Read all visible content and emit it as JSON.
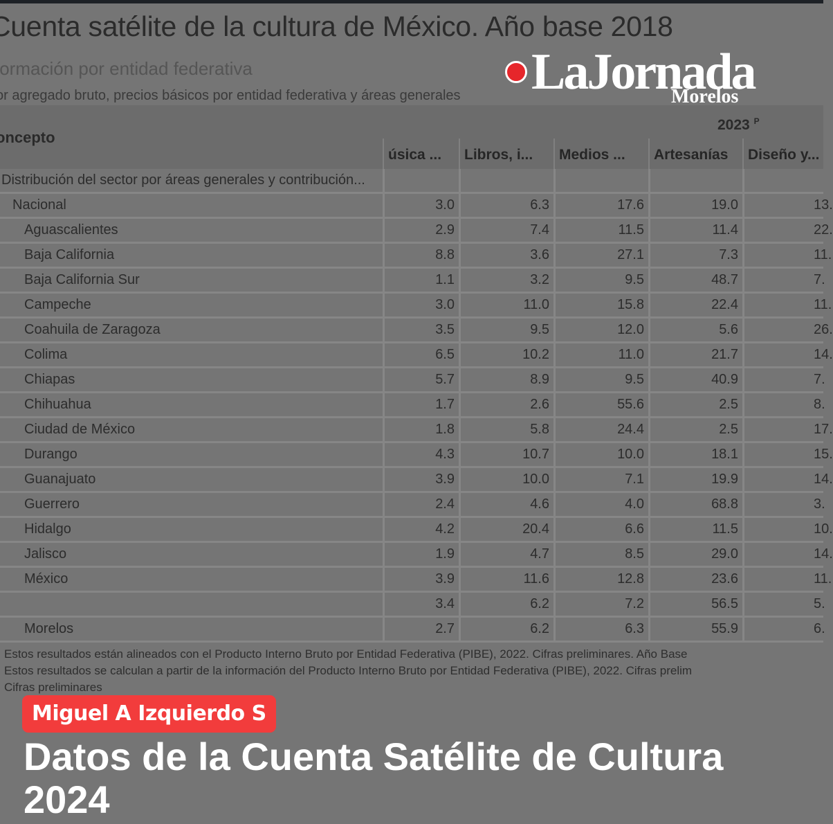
{
  "source_table": {
    "title": "Cuenta satélite de la cultura de México. Año base 2018",
    "subtitle": "formación por entidad federativa",
    "description": "or agregado bruto, precios básicos por entidad federativa y áreas generales",
    "concept_header": "oncepto",
    "year": "2023",
    "year_mark": "P",
    "columns": [
      "úsica ...",
      "Libros, i...",
      "Medios ...",
      "Artesanías",
      "Diseño y..."
    ],
    "rows": [
      {
        "label": "Distribución del sector por áreas generales y contribución...",
        "indent": 0,
        "values": [
          "",
          "",
          "",
          "",
          ""
        ]
      },
      {
        "label": "Nacional",
        "indent": 1,
        "values": [
          "3.0",
          "6.3",
          "17.6",
          "19.0",
          "13."
        ]
      },
      {
        "label": "Aguascalientes",
        "indent": 2,
        "values": [
          "2.9",
          "7.4",
          "11.5",
          "11.4",
          "22."
        ]
      },
      {
        "label": "Baja California",
        "indent": 2,
        "values": [
          "8.8",
          "3.6",
          "27.1",
          "7.3",
          "11."
        ]
      },
      {
        "label": "Baja California Sur",
        "indent": 2,
        "values": [
          "1.1",
          "3.2",
          "9.5",
          "48.7",
          "7."
        ]
      },
      {
        "label": "Campeche",
        "indent": 2,
        "values": [
          "3.0",
          "11.0",
          "15.8",
          "22.4",
          "11."
        ]
      },
      {
        "label": "Coahuila de Zaragoza",
        "indent": 2,
        "values": [
          "3.5",
          "9.5",
          "12.0",
          "5.6",
          "26."
        ]
      },
      {
        "label": "Colima",
        "indent": 2,
        "values": [
          "6.5",
          "10.2",
          "11.0",
          "21.7",
          "14."
        ]
      },
      {
        "label": "Chiapas",
        "indent": 2,
        "values": [
          "5.7",
          "8.9",
          "9.5",
          "40.9",
          "7."
        ]
      },
      {
        "label": "Chihuahua",
        "indent": 2,
        "values": [
          "1.7",
          "2.6",
          "55.6",
          "2.5",
          "8."
        ]
      },
      {
        "label": "Ciudad de México",
        "indent": 2,
        "values": [
          "1.8",
          "5.8",
          "24.4",
          "2.5",
          "17."
        ]
      },
      {
        "label": "Durango",
        "indent": 2,
        "values": [
          "4.3",
          "10.7",
          "10.0",
          "18.1",
          "15."
        ]
      },
      {
        "label": "Guanajuato",
        "indent": 2,
        "values": [
          "3.9",
          "10.0",
          "7.1",
          "19.9",
          "14."
        ]
      },
      {
        "label": "Guerrero",
        "indent": 2,
        "values": [
          "2.4",
          "4.6",
          "4.0",
          "68.8",
          "3."
        ]
      },
      {
        "label": "Hidalgo",
        "indent": 2,
        "values": [
          "4.2",
          "20.4",
          "6.6",
          "11.5",
          "10."
        ]
      },
      {
        "label": "Jalisco",
        "indent": 2,
        "values": [
          "1.9",
          "4.7",
          "8.5",
          "29.0",
          "14."
        ]
      },
      {
        "label": "México",
        "indent": 2,
        "values": [
          "3.9",
          "11.6",
          "12.8",
          "23.6",
          "11."
        ]
      },
      {
        "label": "",
        "indent": 2,
        "values": [
          "3.4",
          "6.2",
          "7.2",
          "56.5",
          "5."
        ]
      },
      {
        "label": "Morelos",
        "indent": 2,
        "values": [
          "2.7",
          "6.2",
          "6.3",
          "55.9",
          "6."
        ]
      }
    ],
    "footnotes": [
      "Estos resultados están alineados con el Producto Interno Bruto por Entidad Federativa (PIBE), 2022. Cifras preliminares. Año Base",
      "Estos resultados se calculan a partir de la información del Producto Interno Bruto por Entidad Federativa (PIBE), 2022. Cifras prelim",
      "Cifras preliminares"
    ]
  },
  "logo": {
    "name": "LaJornada",
    "edition": "Morelos",
    "brand_color": "#e6262b"
  },
  "author_badge": {
    "label": "Miguel A Izquierdo S",
    "color": "#f23c3c"
  },
  "headline": "Datos de la Cuenta Satélite de Cultura 2024"
}
